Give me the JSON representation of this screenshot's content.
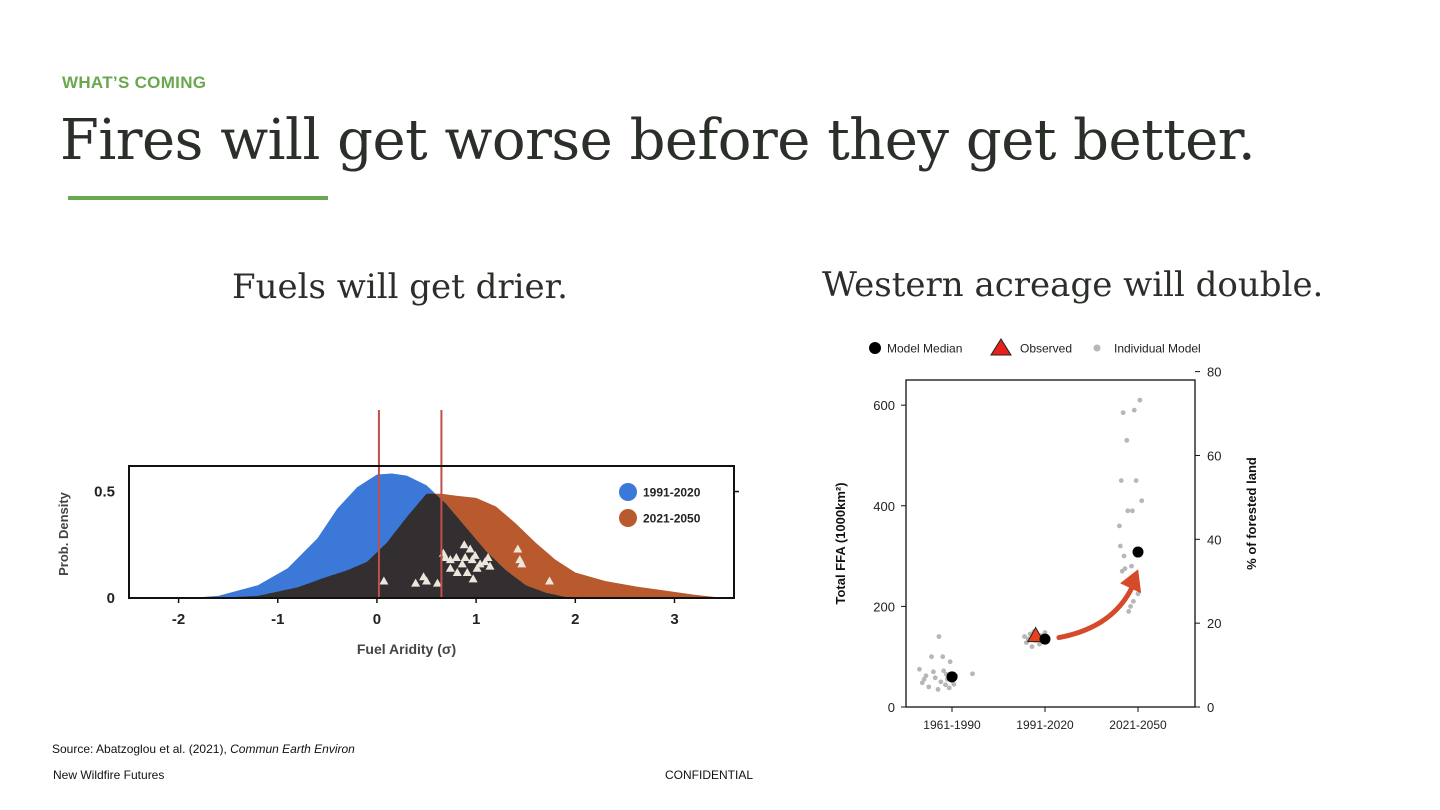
{
  "slide": {
    "kicker": "WHAT’S COMING",
    "title": "Fires will get worse before they get better.",
    "accent_color": "#6aa84f",
    "footer_left": "New Wildfire Futures",
    "footer_center": "CONFIDENTIAL",
    "source_prefix": "Source: Abatzoglou et al. (2021), ",
    "source_journal": "Commun Earth Environ"
  },
  "chart_data": [
    {
      "type": "area",
      "subtitle": "Fuels will get drier.",
      "xlabel": "Fuel Aridity (σ)",
      "ylabel": "Prob. Density",
      "xlim": [
        -2.5,
        3.6
      ],
      "ylim": [
        0,
        0.62
      ],
      "xticks": [
        "-2",
        "-1",
        "0",
        "1",
        "2",
        "3"
      ],
      "yticks": [
        "0",
        "0.5"
      ],
      "legend_position": "top-right",
      "vlines": [
        0.02,
        0.65
      ],
      "vline_color": "#c0504d",
      "series": [
        {
          "name": "1991-2020",
          "color": "#3b78d8",
          "x": [
            -1.9,
            -1.6,
            -1.2,
            -0.9,
            -0.6,
            -0.4,
            -0.2,
            0.0,
            0.15,
            0.3,
            0.5,
            0.7,
            0.9,
            1.1,
            1.3,
            1.5,
            1.7,
            1.9,
            2.0
          ],
          "y": [
            0.0,
            0.01,
            0.06,
            0.14,
            0.28,
            0.42,
            0.52,
            0.58,
            0.585,
            0.575,
            0.53,
            0.44,
            0.33,
            0.22,
            0.13,
            0.06,
            0.025,
            0.005,
            0.0
          ]
        },
        {
          "name": "2021-2050",
          "color": "#b85a2d",
          "x": [
            -1.6,
            -1.2,
            -0.8,
            -0.5,
            -0.3,
            -0.1,
            0.1,
            0.3,
            0.5,
            0.65,
            0.8,
            1.0,
            1.2,
            1.4,
            1.6,
            1.8,
            2.0,
            2.3,
            2.6,
            2.9,
            3.2,
            3.5
          ],
          "y": [
            0.0,
            0.01,
            0.05,
            0.1,
            0.13,
            0.17,
            0.26,
            0.38,
            0.49,
            0.49,
            0.48,
            0.47,
            0.43,
            0.35,
            0.26,
            0.18,
            0.12,
            0.08,
            0.055,
            0.035,
            0.015,
            0.0
          ]
        }
      ],
      "observed_points": {
        "marker": "triangle",
        "x": [
          0.07,
          0.39,
          0.47,
          0.5,
          0.61,
          0.67,
          0.69,
          0.74,
          0.74,
          0.8,
          0.81,
          0.86,
          0.88,
          0.89,
          0.91,
          0.94,
          0.96,
          0.97,
          0.99,
          1.01,
          1.04,
          1.09,
          1.12,
          1.14,
          1.42,
          1.44,
          1.46,
          1.74
        ],
        "y": [
          0.08,
          0.07,
          0.1,
          0.08,
          0.07,
          0.21,
          0.19,
          0.14,
          0.18,
          0.19,
          0.12,
          0.16,
          0.25,
          0.19,
          0.12,
          0.23,
          0.18,
          0.09,
          0.2,
          0.14,
          0.16,
          0.17,
          0.19,
          0.15,
          0.23,
          0.18,
          0.16,
          0.08
        ]
      }
    },
    {
      "type": "scatter",
      "subtitle": "Western acreage will double.",
      "ylabel": "Total FFA (1000km²)",
      "ylabel_right": "% of forested land",
      "categories": [
        "1961-1990",
        "1991-2020",
        "2021-2050"
      ],
      "ylim": [
        0,
        650
      ],
      "yticks": [
        "0",
        "200",
        "400",
        "600"
      ],
      "ylim_right": [
        0,
        78
      ],
      "yticks_right": [
        "0",
        "20",
        "40",
        "60",
        "80"
      ],
      "legend_position": "top",
      "legend": [
        "Model Median",
        "Observed",
        "Individual Model"
      ],
      "series": [
        {
          "name": "Model Median",
          "marker": "circle",
          "color": "#000000",
          "x": [
            0,
            1,
            2
          ],
          "y": [
            60,
            135,
            308
          ]
        },
        {
          "name": "Observed",
          "marker": "triangle",
          "color": "#e8401c",
          "x": [
            0.9
          ],
          "y": [
            142
          ]
        },
        {
          "name": "Individual Model",
          "marker": "dot",
          "color": "#b7b7b7",
          "points": [
            [
              -0.35,
              75
            ],
            [
              -0.3,
              55
            ],
            [
              -0.32,
              48
            ],
            [
              -0.28,
              62
            ],
            [
              -0.25,
              40
            ],
            [
              -0.22,
              100
            ],
            [
              -0.2,
              70
            ],
            [
              -0.18,
              58
            ],
            [
              -0.15,
              35
            ],
            [
              -0.14,
              140
            ],
            [
              -0.12,
              50
            ],
            [
              -0.1,
              100
            ],
            [
              -0.09,
              72
            ],
            [
              -0.07,
              44
            ],
            [
              -0.06,
              65
            ],
            [
              -0.05,
              55
            ],
            [
              -0.03,
              38
            ],
            [
              -0.02,
              90
            ],
            [
              0.0,
              52
            ],
            [
              0.02,
              45
            ],
            [
              0.04,
              62
            ],
            [
              0.22,
              66
            ],
            [
              0.78,
              140
            ],
            [
              0.8,
              128
            ],
            [
              0.82,
              135
            ],
            [
              0.84,
              145
            ],
            [
              0.86,
              120
            ],
            [
              0.88,
              150
            ],
            [
              0.9,
              132
            ],
            [
              0.92,
              138
            ],
            [
              0.94,
              125
            ],
            [
              0.96,
              142
            ],
            [
              0.98,
              130
            ],
            [
              1.0,
              148
            ],
            [
              1.8,
              360
            ],
            [
              1.81,
              320
            ],
            [
              1.82,
              450
            ],
            [
              1.83,
              270
            ],
            [
              1.84,
              585
            ],
            [
              1.85,
              300
            ],
            [
              1.86,
              275
            ],
            [
              1.88,
              530
            ],
            [
              1.89,
              390
            ],
            [
              1.9,
              190
            ],
            [
              1.92,
              200
            ],
            [
              1.93,
              280
            ],
            [
              1.94,
              390
            ],
            [
              1.95,
              210
            ],
            [
              1.96,
              590
            ],
            [
              1.98,
              450
            ],
            [
              2.0,
              225
            ],
            [
              2.02,
              610
            ],
            [
              2.04,
              410
            ]
          ]
        }
      ],
      "trend_arrow": {
        "from": [
          1.15,
          138
        ],
        "to": [
          1.98,
          262
        ],
        "color": "#d44a2a"
      }
    }
  ]
}
